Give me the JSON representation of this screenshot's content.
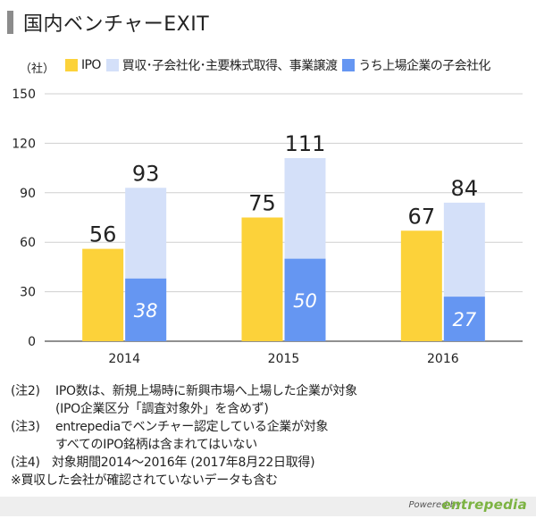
{
  "title": "国内ベンチャーEXIT",
  "unit_label": "（社）",
  "legend": [
    {
      "label": "IPO",
      "color": "#fcd23a",
      "icon": "square-swatch"
    },
    {
      "label": "買収･子会社化･主要株式取得、事業譲渡",
      "color": "#d4e0f9",
      "icon": "square-swatch"
    },
    {
      "label": "うち上場企業の子会社化",
      "color": "#6596f2",
      "icon": "square-swatch"
    }
  ],
  "chart_data": {
    "type": "bar",
    "categories": [
      "2014",
      "2015",
      "2016"
    ],
    "series": [
      {
        "name": "IPO",
        "values": [
          56,
          75,
          67
        ],
        "color": "#fcd23a"
      },
      {
        "name": "買収･子会社化･主要株式取得、事業譲渡",
        "values": [
          93,
          111,
          84
        ],
        "color": "#d4e0f9"
      },
      {
        "name": "うち上場企業の子会社化",
        "values": [
          38,
          50,
          27
        ],
        "color": "#6596f2"
      }
    ],
    "ylim": [
      0,
      150
    ],
    "yticks": [
      0,
      30,
      60,
      90,
      120,
      150
    ],
    "grid": true,
    "legend_position": "top"
  },
  "notes": [
    {
      "tag": "(注2)",
      "lines": [
        "IPO数は、新規上場時に新興市場へ上場した企業が対象",
        "(IPO企業区分「調査対象外」を含めず)"
      ]
    },
    {
      "tag": "(注3)",
      "lines": [
        "entrepediaでベンチャー認定している企業が対象",
        "すべてのIPO銘柄は含まれてはいない"
      ]
    },
    {
      "tag": "(注4)",
      "lines": [
        "対象期間2014～2016年 (2017年8月22日取得)"
      ]
    },
    {
      "tag": "※",
      "lines": [
        "買収した会社が確認されていないデータも含む"
      ]
    }
  ],
  "footer": {
    "powered_by": "Powered by",
    "brand": "entrepedia"
  }
}
